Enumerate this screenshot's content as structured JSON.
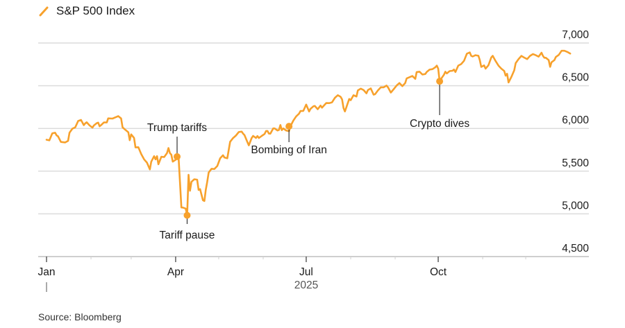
{
  "legend": {
    "label": "S&P 500 Index",
    "color": "#f7a12c"
  },
  "source": "Source: Bloomberg",
  "chart_data": {
    "type": "line",
    "title": "S&P 500 Index",
    "xlabel": "2025",
    "ylabel": "",
    "ylim": [
      4500,
      7000
    ],
    "yticks": [
      4500,
      5000,
      5500,
      6000,
      6500,
      7000
    ],
    "ytick_labels": [
      "4,500",
      "5,000",
      "5,500",
      "6,000",
      "6,500",
      "7,000"
    ],
    "xticks": [
      {
        "day": 0,
        "label": "Jan"
      },
      {
        "day": 90,
        "label": "Apr"
      },
      {
        "day": 181,
        "label": "Jul"
      },
      {
        "day": 273,
        "label": "Oct"
      }
    ],
    "minor_xticks": [
      31,
      59,
      120,
      151,
      212,
      243,
      304,
      334
    ],
    "year_label": "2025",
    "grid": true,
    "series": [
      {
        "name": "S&P 500 Index",
        "color": "#f7a12c",
        "points": [
          [
            0,
            5868
          ],
          [
            2,
            5860
          ],
          [
            4,
            5942
          ],
          [
            6,
            5950
          ],
          [
            7,
            5918
          ],
          [
            8,
            5908
          ],
          [
            10,
            5842
          ],
          [
            13,
            5836
          ],
          [
            15,
            5855
          ],
          [
            16,
            5950
          ],
          [
            18,
            5997
          ],
          [
            20,
            6012
          ],
          [
            21,
            6049
          ],
          [
            22,
            6087
          ],
          [
            24,
            6100
          ],
          [
            26,
            6038
          ],
          [
            27,
            6060
          ],
          [
            28,
            6072
          ],
          [
            30,
            6035
          ],
          [
            32,
            6010
          ],
          [
            33,
            6035
          ],
          [
            35,
            6062
          ],
          [
            36,
            6068
          ],
          [
            37,
            6025
          ],
          [
            38,
            6038
          ],
          [
            40,
            6070
          ],
          [
            42,
            6070
          ],
          [
            43,
            6118
          ],
          [
            46,
            6115
          ],
          [
            48,
            6130
          ],
          [
            50,
            6144
          ],
          [
            52,
            6117
          ],
          [
            53,
            6013
          ],
          [
            55,
            5983
          ],
          [
            57,
            5955
          ],
          [
            58,
            5862
          ],
          [
            59,
            5930
          ],
          [
            61,
            5890
          ],
          [
            62,
            5778
          ],
          [
            64,
            5780
          ],
          [
            66,
            5700
          ],
          [
            68,
            5638
          ],
          [
            70,
            5600
          ],
          [
            72,
            5520
          ],
          [
            73,
            5610
          ],
          [
            75,
            5675
          ],
          [
            76,
            5638
          ],
          [
            77,
            5675
          ],
          [
            78,
            5580
          ],
          [
            80,
            5668
          ],
          [
            82,
            5665
          ],
          [
            84,
            5712
          ],
          [
            85,
            5770
          ],
          [
            86,
            5710
          ],
          [
            87,
            5693
          ],
          [
            88,
            5611
          ],
          [
            90,
            5633
          ],
          [
            91,
            5672
          ],
          [
            92,
            5670
          ],
          [
            94,
            5075
          ],
          [
            95,
            5074
          ],
          [
            97,
            5062
          ],
          [
            98,
            4983
          ],
          [
            99,
            5457
          ],
          [
            100,
            5270
          ],
          [
            101,
            5375
          ],
          [
            103,
            5405
          ],
          [
            105,
            5400
          ],
          [
            106,
            5280
          ],
          [
            107,
            5290
          ],
          [
            109,
            5160
          ],
          [
            110,
            5150
          ],
          [
            111,
            5280
          ],
          [
            112,
            5375
          ],
          [
            113,
            5484
          ],
          [
            115,
            5528
          ],
          [
            116,
            5526
          ],
          [
            117,
            5525
          ],
          [
            119,
            5560
          ],
          [
            120,
            5604
          ],
          [
            121,
            5650
          ],
          [
            123,
            5686
          ],
          [
            124,
            5660
          ],
          [
            126,
            5650
          ],
          [
            127,
            5750
          ],
          [
            128,
            5844
          ],
          [
            130,
            5887
          ],
          [
            132,
            5916
          ],
          [
            134,
            5958
          ],
          [
            136,
            5963
          ],
          [
            137,
            5940
          ],
          [
            138,
            5921
          ],
          [
            140,
            5842
          ],
          [
            141,
            5802
          ],
          [
            143,
            5888
          ],
          [
            144,
            5912
          ],
          [
            146,
            5889
          ],
          [
            147,
            5911
          ],
          [
            148,
            5888
          ],
          [
            150,
            5912
          ],
          [
            152,
            5935
          ],
          [
            153,
            5970
          ],
          [
            154,
            5970
          ],
          [
            155,
            5940
          ],
          [
            156,
            5938
          ],
          [
            158,
            6000
          ],
          [
            159,
            6000
          ],
          [
            161,
            5976
          ],
          [
            162,
            5982
          ],
          [
            163,
            6040
          ],
          [
            164,
            5980
          ],
          [
            165,
            6000
          ],
          [
            167,
            5976
          ],
          [
            169,
            5968
          ],
          [
            170,
            6025
          ],
          [
            172,
            6092
          ],
          [
            174,
            6141
          ],
          [
            176,
            6173
          ],
          [
            177,
            6204
          ],
          [
            179,
            6205
          ],
          [
            181,
            6279
          ],
          [
            183,
            6198
          ],
          [
            184,
            6229
          ],
          [
            186,
            6259
          ],
          [
            187,
            6263
          ],
          [
            189,
            6225
          ],
          [
            191,
            6268
          ],
          [
            192,
            6243
          ],
          [
            194,
            6280
          ],
          [
            195,
            6297
          ],
          [
            197,
            6296
          ],
          [
            199,
            6305
          ],
          [
            201,
            6359
          ],
          [
            203,
            6389
          ],
          [
            205,
            6370
          ],
          [
            206,
            6339
          ],
          [
            207,
            6238
          ],
          [
            208,
            6199
          ],
          [
            210,
            6299
          ],
          [
            211,
            6345
          ],
          [
            212,
            6330
          ],
          [
            214,
            6389
          ],
          [
            216,
            6373
          ],
          [
            217,
            6445
          ],
          [
            219,
            6466
          ],
          [
            221,
            6449
          ],
          [
            223,
            6411
          ],
          [
            224,
            6449
          ],
          [
            226,
            6468
          ],
          [
            228,
            6395
          ],
          [
            229,
            6400
          ],
          [
            231,
            6445
          ],
          [
            233,
            6481
          ],
          [
            235,
            6481
          ],
          [
            237,
            6502
          ],
          [
            238,
            6481
          ],
          [
            240,
            6420
          ],
          [
            242,
            6460
          ],
          [
            244,
            6502
          ],
          [
            246,
            6532
          ],
          [
            248,
            6495
          ],
          [
            250,
            6532
          ],
          [
            251,
            6585
          ],
          [
            253,
            6600
          ],
          [
            255,
            6614
          ],
          [
            257,
            6580
          ],
          [
            258,
            6660
          ],
          [
            260,
            6664
          ],
          [
            262,
            6631
          ],
          [
            264,
            6637
          ],
          [
            265,
            6661
          ],
          [
            267,
            6688
          ],
          [
            269,
            6694
          ],
          [
            271,
            6716
          ],
          [
            272,
            6735
          ],
          [
            273,
            6700
          ],
          [
            274,
            6552
          ],
          [
            275,
            6580
          ],
          [
            277,
            6629
          ],
          [
            278,
            6664
          ],
          [
            279,
            6644
          ],
          [
            281,
            6671
          ],
          [
            283,
            6675
          ],
          [
            284,
            6690
          ],
          [
            285,
            6660
          ],
          [
            287,
            6735
          ],
          [
            289,
            6753
          ],
          [
            291,
            6791
          ],
          [
            293,
            6875
          ],
          [
            295,
            6890
          ],
          [
            296,
            6850
          ],
          [
            297,
            6842
          ],
          [
            299,
            6857
          ],
          [
            301,
            6851
          ],
          [
            302,
            6800
          ],
          [
            303,
            6720
          ],
          [
            305,
            6738
          ],
          [
            306,
            6700
          ],
          [
            308,
            6739
          ],
          [
            310,
            6832
          ],
          [
            311,
            6850
          ],
          [
            313,
            6788
          ],
          [
            315,
            6735
          ],
          [
            317,
            6700
          ],
          [
            319,
            6672
          ],
          [
            320,
            6618
          ],
          [
            321,
            6640
          ],
          [
            322,
            6538
          ],
          [
            324,
            6603
          ],
          [
            326,
            6680
          ],
          [
            327,
            6765
          ],
          [
            329,
            6812
          ],
          [
            331,
            6849
          ],
          [
            333,
            6829
          ],
          [
            335,
            6812
          ],
          [
            337,
            6849
          ],
          [
            339,
            6870
          ],
          [
            341,
            6857
          ],
          [
            343,
            6840
          ],
          [
            345,
            6886
          ],
          [
            346,
            6850
          ],
          [
            347,
            6827
          ],
          [
            348,
            6827
          ],
          [
            350,
            6800
          ],
          [
            351,
            6721
          ],
          [
            352,
            6774
          ],
          [
            354,
            6800
          ],
          [
            355,
            6836
          ],
          [
            357,
            6860
          ],
          [
            359,
            6909
          ],
          [
            361,
            6909
          ],
          [
            363,
            6895
          ],
          [
            365,
            6876
          ]
        ],
        "annotations": [
          {
            "label": "Trump tariffs",
            "day": 91,
            "value": 5670,
            "position": "above"
          },
          {
            "label": "Tariff pause",
            "day": 98,
            "value": 4983,
            "position": "below"
          },
          {
            "label": "Bombing of Iran",
            "day": 169,
            "value": 6025,
            "position": "below"
          },
          {
            "label": "Crypto dives",
            "day": 274,
            "value": 6552,
            "position": "below"
          }
        ]
      }
    ]
  }
}
